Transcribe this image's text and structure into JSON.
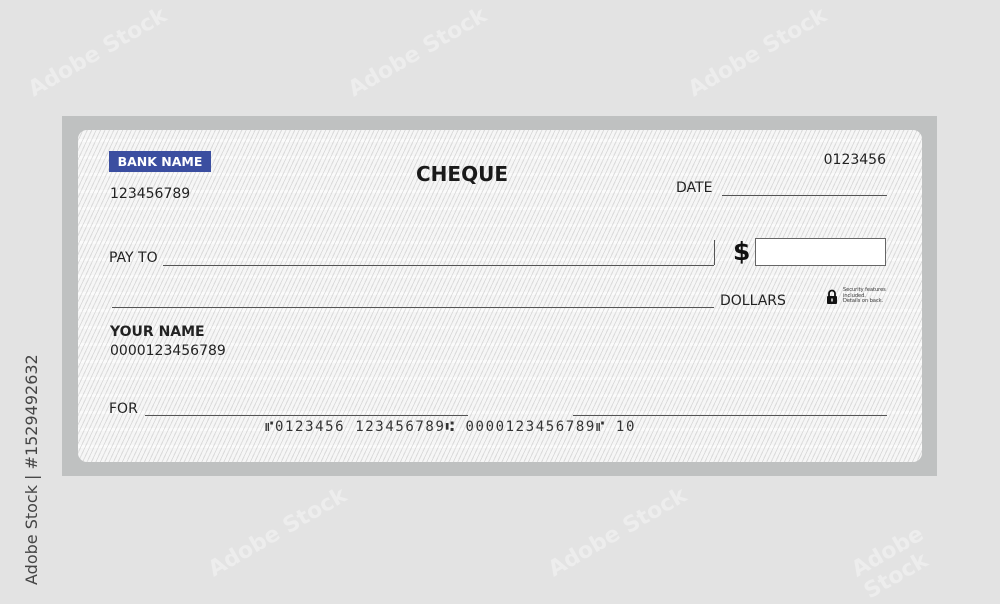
{
  "cheque": {
    "bank_name": "BANK NAME",
    "routing_number": "123456789",
    "title": "CHEQUE",
    "cheque_number": "0123456",
    "date_label": "DATE",
    "pay_to_label": "PAY TO",
    "currency_symbol": "$",
    "dollars_label": "DOLLARS",
    "security_note": [
      "Security features",
      "included.",
      "Details on back."
    ],
    "account_holder": "YOUR NAME",
    "account_number": "0000123456789",
    "for_label": "FOR",
    "micr_line": "⑈0123456  123456789⑆  0000123456789⑈  10",
    "colors": {
      "bank_badge": "#3b4ea0",
      "frame": "#bfc1c1",
      "background": "#e3e3e3"
    }
  },
  "watermark": {
    "text": "Adobe Stock",
    "side_text": "Adobe Stock | #1529492632"
  }
}
